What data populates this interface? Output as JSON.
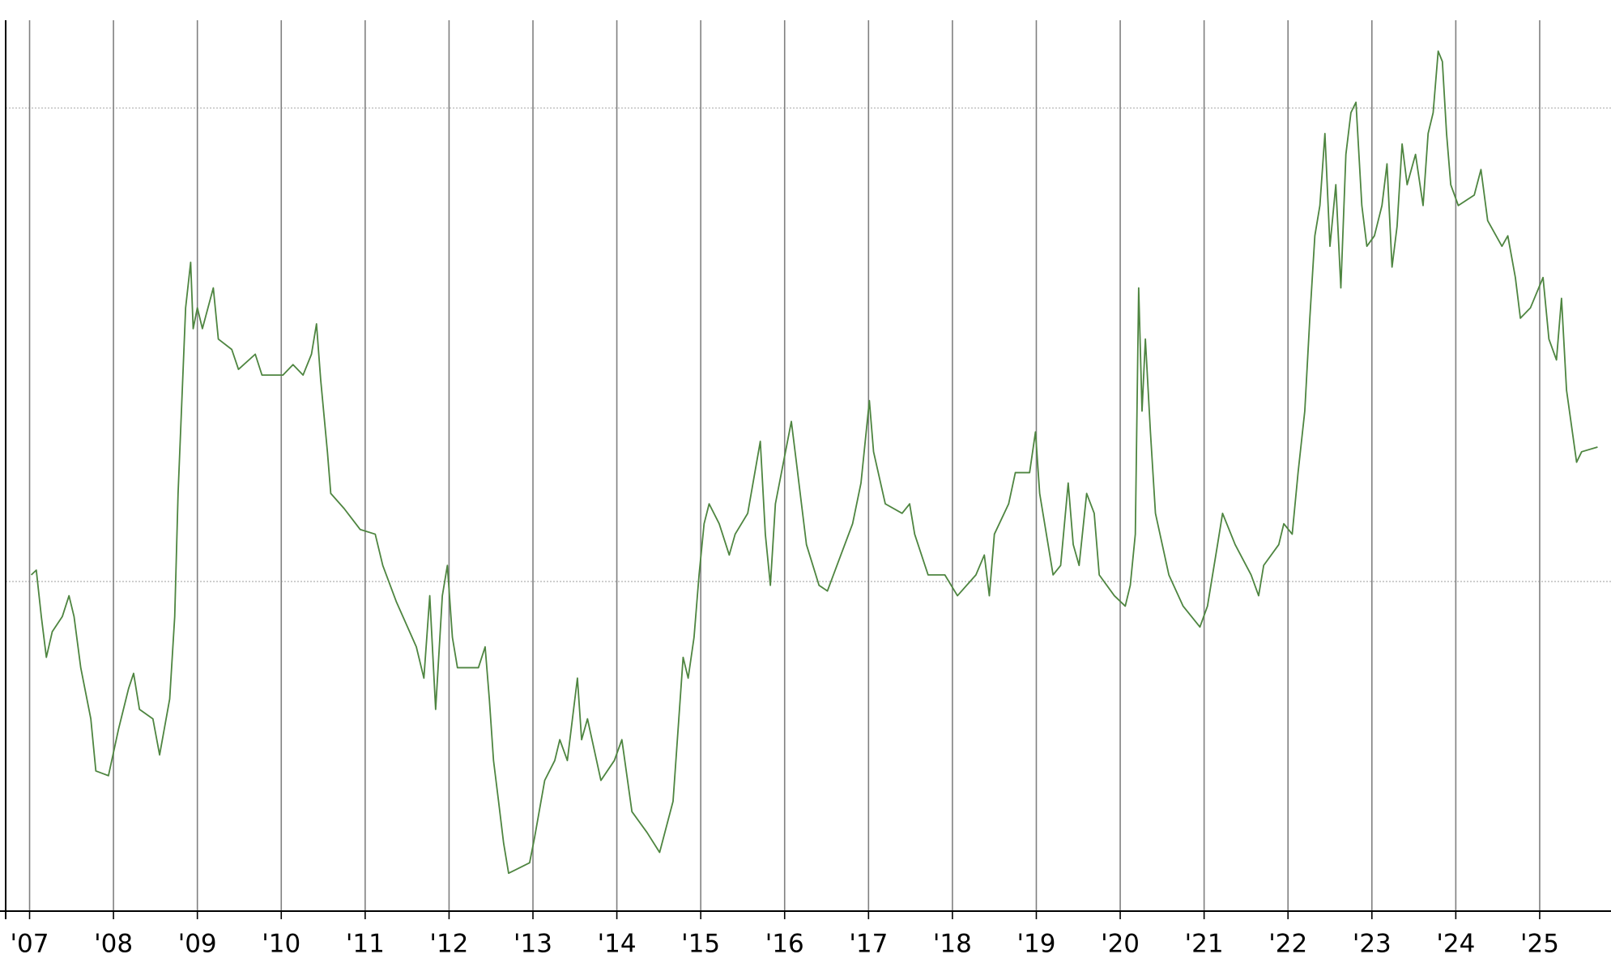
{
  "chart_data": {
    "type": "line",
    "xlim": [
      2006.715,
      2025.85
    ],
    "ylim": [
      15.2,
      111.4
    ],
    "xticks": [
      {
        "value": 2007,
        "label": "'07"
      },
      {
        "value": 2008,
        "label": "'08"
      },
      {
        "value": 2009,
        "label": "'09"
      },
      {
        "value": 2010,
        "label": "'10"
      },
      {
        "value": 2011,
        "label": "'11"
      },
      {
        "value": 2012,
        "label": "'12"
      },
      {
        "value": 2013,
        "label": "'13"
      },
      {
        "value": 2014,
        "label": "'14"
      },
      {
        "value": 2015,
        "label": "'15"
      },
      {
        "value": 2016,
        "label": "'16"
      },
      {
        "value": 2017,
        "label": "'17"
      },
      {
        "value": 2018,
        "label": "'18"
      },
      {
        "value": 2019,
        "label": "'19"
      },
      {
        "value": 2020,
        "label": "'20"
      },
      {
        "value": 2021,
        "label": "'21"
      },
      {
        "value": 2022,
        "label": "'22"
      },
      {
        "value": 2023,
        "label": "'23"
      },
      {
        "value": 2024,
        "label": "'24"
      },
      {
        "value": 2025,
        "label": "'25"
      }
    ],
    "y_gridlines": [
      50,
      100
    ],
    "grid_color": "#808080",
    "y_grid_color": "#b0b0b0",
    "x": [
      2007.02,
      2007.08,
      2007.14,
      2007.2,
      2007.27,
      2007.39,
      2007.47,
      2007.53,
      2007.61,
      2007.73,
      2007.79,
      2007.94,
      2008.06,
      2008.18,
      2008.24,
      2008.31,
      2008.47,
      2008.55,
      2008.67,
      2008.73,
      2008.77,
      2008.81,
      2008.86,
      2008.92,
      2008.95,
      2009.0,
      2009.06,
      2009.19,
      2009.25,
      2009.41,
      2009.49,
      2009.69,
      2009.77,
      2010.02,
      2010.14,
      2010.26,
      2010.36,
      2010.42,
      2010.47,
      2010.55,
      2010.59,
      2010.75,
      2010.94,
      2011.12,
      2011.21,
      2011.37,
      2011.61,
      2011.7,
      2011.77,
      2011.84,
      2011.92,
      2011.98,
      2012.04,
      2012.1,
      2012.35,
      2012.43,
      2012.48,
      2012.53,
      2012.59,
      2012.65,
      2012.71,
      2012.96,
      2013.02,
      2013.14,
      2013.26,
      2013.32,
      2013.41,
      2013.53,
      2013.58,
      2013.65,
      2013.81,
      2013.97,
      2014.06,
      2014.18,
      2014.36,
      2014.51,
      2014.67,
      2014.79,
      2014.85,
      2014.92,
      2014.98,
      2015.04,
      2015.1,
      2015.22,
      2015.34,
      2015.41,
      2015.56,
      2015.71,
      2015.77,
      2015.83,
      2015.89,
      2016.08,
      2016.14,
      2016.26,
      2016.41,
      2016.51,
      2016.67,
      2016.81,
      2016.91,
      2017.01,
      2017.06,
      2017.2,
      2017.4,
      2017.49,
      2017.55,
      2017.71,
      2017.91,
      2018.06,
      2018.28,
      2018.38,
      2018.44,
      2018.5,
      2018.67,
      2018.75,
      2018.92,
      2018.99,
      2019.04,
      2019.2,
      2019.29,
      2019.38,
      2019.44,
      2019.51,
      2019.6,
      2019.69,
      2019.75,
      2019.93,
      2020.06,
      2020.12,
      2020.18,
      2020.22,
      2020.26,
      2020.3,
      2020.36,
      2020.42,
      2020.58,
      2020.75,
      2020.95,
      2021.04,
      2021.16,
      2021.22,
      2021.37,
      2021.56,
      2021.65,
      2021.71,
      2021.89,
      2021.95,
      2022.05,
      2022.12,
      2022.2,
      2022.26,
      2022.32,
      2022.38,
      2022.44,
      2022.5,
      2022.57,
      2022.63,
      2022.69,
      2022.75,
      2022.81,
      2022.88,
      2022.94,
      2023.03,
      2023.12,
      2023.18,
      2023.24,
      2023.3,
      2023.36,
      2023.42,
      2023.52,
      2023.61,
      2023.67,
      2023.73,
      2023.79,
      2023.84,
      2023.89,
      2023.94,
      2024.03,
      2024.22,
      2024.3,
      2024.38,
      2024.55,
      2024.62,
      2024.71,
      2024.77,
      2024.89,
      2025.04,
      2025.11,
      2025.2,
      2025.26,
      2025.32,
      2025.44,
      2025.5,
      2025.69
    ],
    "series": [
      {
        "color": "#4e8540",
        "values": [
          50.7,
          51.2,
          46.3,
          42.0,
          44.7,
          46.3,
          48.5,
          46.3,
          40.9,
          35.5,
          30.0,
          29.5,
          34.4,
          38.7,
          40.3,
          36.5,
          35.5,
          31.7,
          37.6,
          46.3,
          59.3,
          68.0,
          78.9,
          83.7,
          76.7,
          78.9,
          76.7,
          81.0,
          75.6,
          74.5,
          72.4,
          74.0,
          71.8,
          71.8,
          72.9,
          71.8,
          74.0,
          77.2,
          71.3,
          63.7,
          59.3,
          57.7,
          55.5,
          55.0,
          51.7,
          47.9,
          43.1,
          39.8,
          48.5,
          36.5,
          48.5,
          51.7,
          44.1,
          40.9,
          40.9,
          43.1,
          37.6,
          31.1,
          26.8,
          22.4,
          19.2,
          20.3,
          23.0,
          29.0,
          31.1,
          33.3,
          31.1,
          39.8,
          33.3,
          35.5,
          29.0,
          31.1,
          33.3,
          25.7,
          23.5,
          21.4,
          26.8,
          42.0,
          39.8,
          44.1,
          50.7,
          56.1,
          58.2,
          56.1,
          52.8,
          55.0,
          57.2,
          64.8,
          55.0,
          49.6,
          58.2,
          66.9,
          62.6,
          53.9,
          49.6,
          49.0,
          52.8,
          56.1,
          60.4,
          69.1,
          63.7,
          58.2,
          57.2,
          58.2,
          55.0,
          50.7,
          50.7,
          48.5,
          50.7,
          52.8,
          48.5,
          55.0,
          58.2,
          61.5,
          61.5,
          65.8,
          59.3,
          50.7,
          51.7,
          60.4,
          53.9,
          51.7,
          59.3,
          57.2,
          50.7,
          48.5,
          47.4,
          49.6,
          55.0,
          81.0,
          68.0,
          75.6,
          65.8,
          57.2,
          50.7,
          47.4,
          45.2,
          47.4,
          53.9,
          57.2,
          53.9,
          50.7,
          48.5,
          51.7,
          53.9,
          56.1,
          55.0,
          61.5,
          68.0,
          77.8,
          86.5,
          89.7,
          97.3,
          85.4,
          91.9,
          81.0,
          95.1,
          99.5,
          100.6,
          89.7,
          85.4,
          86.5,
          89.7,
          94.1,
          83.2,
          87.5,
          96.2,
          91.9,
          95.1,
          89.7,
          97.3,
          99.5,
          106.0,
          104.9,
          97.3,
          91.9,
          89.7,
          90.8,
          93.5,
          88.1,
          85.4,
          86.5,
          82.1,
          77.8,
          78.9,
          82.1,
          75.6,
          73.4,
          79.9,
          70.2,
          62.6,
          63.7,
          64.2
        ]
      }
    ]
  }
}
